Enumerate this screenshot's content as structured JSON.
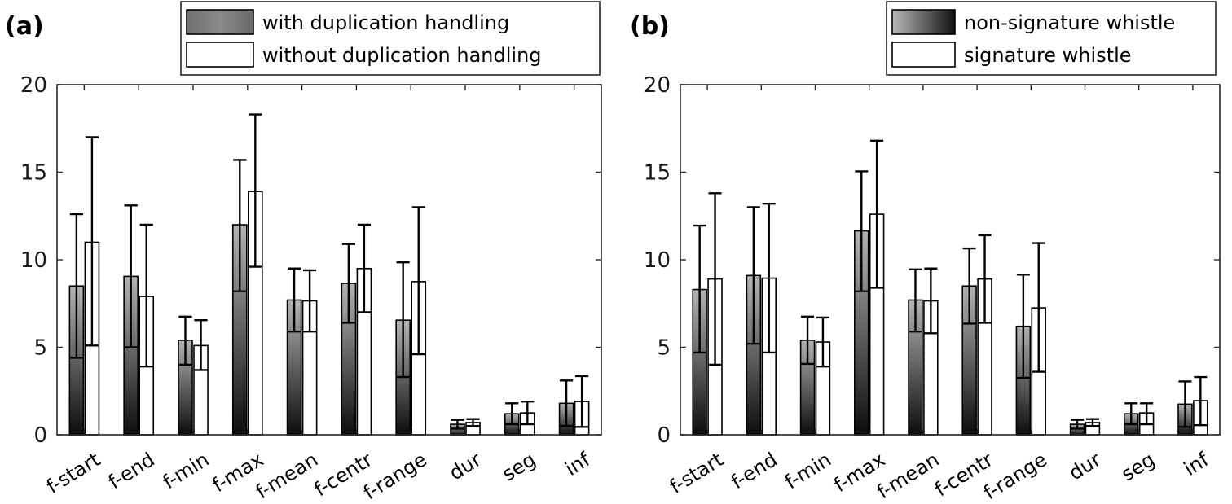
{
  "chart_data": [
    {
      "type": "bar",
      "panel_label": "(a)",
      "categories": [
        "f-start",
        "f-end",
        "f-min",
        "f-max",
        "f-mean",
        "f-centr",
        "f-range",
        "dur",
        "seg",
        "inf"
      ],
      "ylim": [
        0,
        20
      ],
      "yticks": [
        "0",
        "5",
        "10",
        "15",
        "20"
      ],
      "legend_position": "top-right",
      "series": [
        {
          "name": "with duplication handling",
          "style": "gray-gradient",
          "values": [
            8.5,
            9.05,
            5.4,
            12.0,
            7.7,
            8.65,
            6.55,
            0.6,
            1.2,
            1.8
          ],
          "err_low": [
            4.4,
            5.0,
            4.0,
            8.2,
            5.9,
            6.4,
            3.3,
            0.35,
            0.6,
            0.5
          ],
          "err_high": [
            12.6,
            13.1,
            6.75,
            15.7,
            9.5,
            10.9,
            9.85,
            0.85,
            1.8,
            3.1
          ]
        },
        {
          "name": "without duplication handling",
          "style": "white",
          "values": [
            11.0,
            7.9,
            5.1,
            13.9,
            7.65,
            9.5,
            8.75,
            0.7,
            1.25,
            1.9
          ],
          "err_low": [
            5.1,
            3.9,
            3.7,
            9.6,
            5.9,
            7.0,
            4.6,
            0.5,
            0.6,
            0.45
          ],
          "err_high": [
            17.0,
            12.0,
            6.55,
            18.3,
            9.4,
            12.0,
            13.0,
            0.9,
            1.9,
            3.35
          ]
        }
      ]
    },
    {
      "type": "bar",
      "panel_label": "(b)",
      "categories": [
        "f-start",
        "f-end",
        "f-min",
        "f-max",
        "f-mean",
        "f-centr",
        "f-range",
        "dur",
        "seg",
        "inf"
      ],
      "ylim": [
        0,
        20
      ],
      "yticks": [
        "0",
        "5",
        "10",
        "15",
        "20"
      ],
      "legend_position": "top-right",
      "series": [
        {
          "name": "non-signature whistle",
          "style": "gray-gradient",
          "values": [
            8.3,
            9.1,
            5.4,
            11.65,
            7.7,
            8.5,
            6.2,
            0.6,
            1.2,
            1.75
          ],
          "err_low": [
            4.7,
            5.2,
            4.05,
            8.2,
            5.9,
            6.35,
            3.25,
            0.35,
            0.6,
            0.45
          ],
          "err_high": [
            11.95,
            13.0,
            6.75,
            15.05,
            9.45,
            10.65,
            9.15,
            0.85,
            1.8,
            3.05
          ]
        },
        {
          "name": "signature whistle",
          "style": "white",
          "values": [
            8.9,
            8.95,
            5.3,
            12.6,
            7.65,
            8.9,
            7.25,
            0.7,
            1.25,
            1.95
          ],
          "err_low": [
            4.0,
            4.7,
            3.9,
            8.4,
            5.8,
            6.4,
            3.6,
            0.5,
            0.6,
            0.55
          ],
          "err_high": [
            13.8,
            13.2,
            6.7,
            16.8,
            9.5,
            11.4,
            10.95,
            0.9,
            1.8,
            3.3
          ]
        }
      ]
    }
  ]
}
